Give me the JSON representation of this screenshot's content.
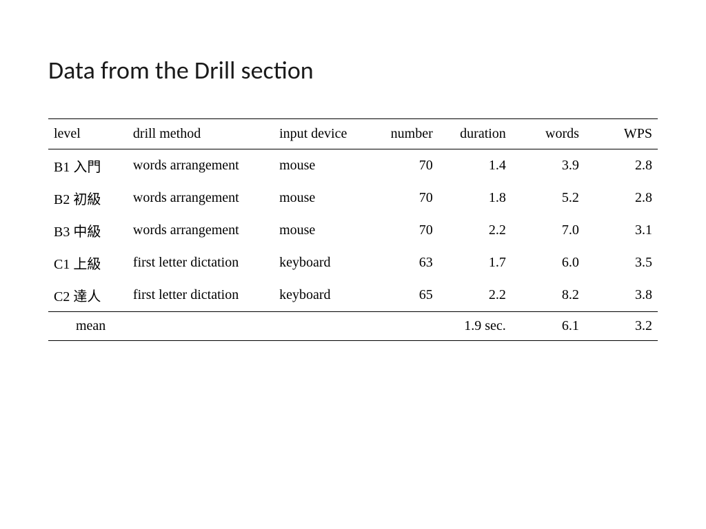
{
  "title": "Data from the Drill section",
  "table": {
    "columns": [
      "level",
      "drill method",
      "input device",
      "number",
      "duration",
      "words",
      "WPS"
    ],
    "column_align": [
      "left",
      "left",
      "left",
      "right",
      "right",
      "right",
      "right"
    ],
    "rows": [
      [
        "B1 入門",
        "words arrangement",
        "mouse",
        "70",
        "1.4",
        "3.9",
        "2.8"
      ],
      [
        "B2 初級",
        "words arrangement",
        "mouse",
        "70",
        "1.8",
        "5.2",
        "2.8"
      ],
      [
        "B3 中級",
        "words arrangement",
        "mouse",
        "70",
        "2.2",
        "7.0",
        "3.1"
      ],
      [
        "C1 上級",
        "first letter dictation",
        "keyboard",
        "63",
        "1.7",
        "6.0",
        "3.5"
      ],
      [
        "C2 達人",
        "first letter dictation",
        "keyboard",
        "65",
        "2.2",
        "8.2",
        "3.8"
      ]
    ],
    "footer": {
      "label": "mean",
      "duration": "1.9 sec.",
      "words": "6.1",
      "wps": "3.2"
    }
  },
  "style": {
    "background_color": "#ffffff",
    "text_color": "#000000",
    "title_fontsize": 36,
    "table_fontsize": 20,
    "border_color": "#000000",
    "title_font": "Segoe UI Light",
    "table_font": "Times New Roman"
  }
}
